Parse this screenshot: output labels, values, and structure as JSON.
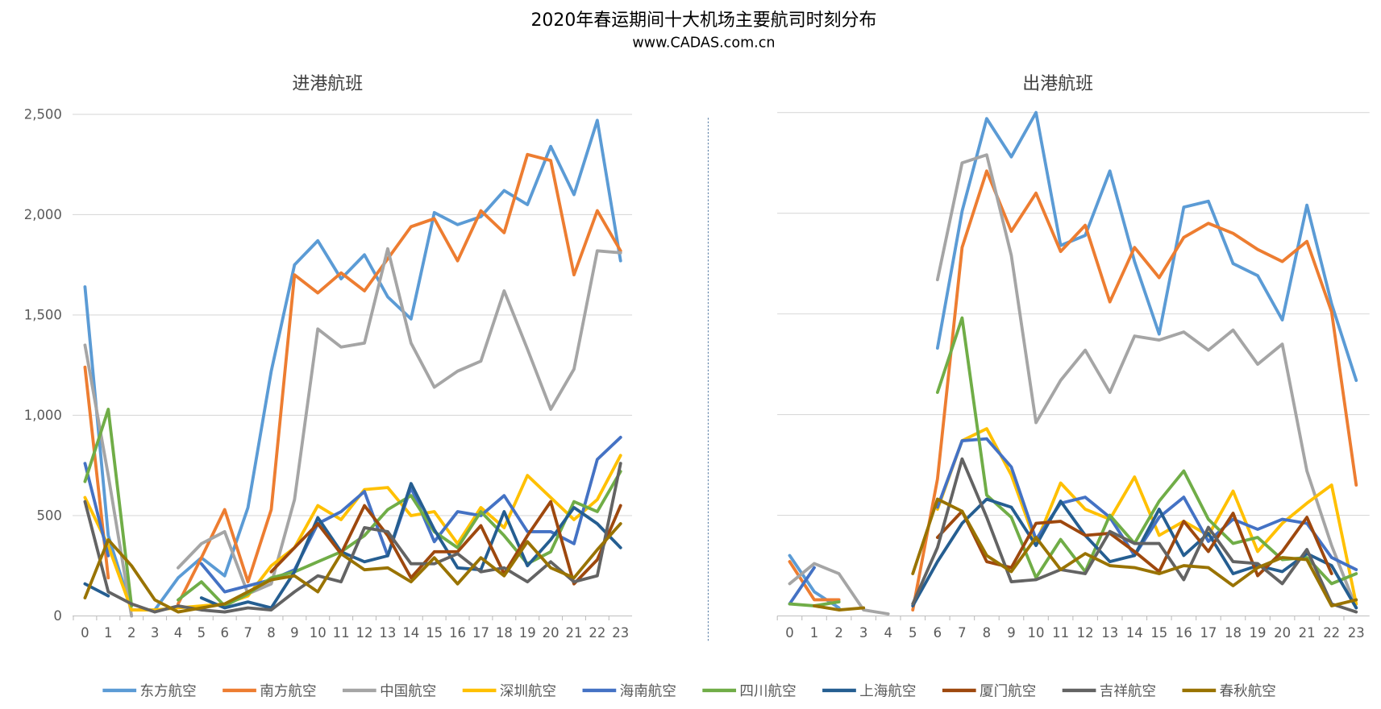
{
  "chart_data": {
    "title": "2020年春运期间十大机场主要航司时刻分布",
    "subtitle": "www.CADAS.com.cn",
    "legend_position": "bottom",
    "series_meta": [
      {
        "name": "东方航空",
        "color": "#5B9BD5"
      },
      {
        "name": "南方航空",
        "color": "#ED7D31"
      },
      {
        "name": "中国航空",
        "color": "#A5A5A5"
      },
      {
        "name": "深圳航空",
        "color": "#FFC000"
      },
      {
        "name": "海南航空",
        "color": "#4472C4"
      },
      {
        "name": "四川航空",
        "color": "#70AD47"
      },
      {
        "name": "上海航空",
        "color": "#255E91"
      },
      {
        "name": "厦门航空",
        "color": "#9E480E"
      },
      {
        "name": "吉祥航空",
        "color": "#636363"
      },
      {
        "name": "春秋航空",
        "color": "#997300"
      }
    ],
    "charts": [
      {
        "type": "line",
        "title": "进港航班",
        "x": [
          0,
          1,
          2,
          3,
          4,
          5,
          6,
          7,
          8,
          9,
          10,
          11,
          12,
          13,
          14,
          15,
          16,
          17,
          18,
          19,
          20,
          21,
          22,
          23
        ],
        "ylim": [
          0,
          2500
        ],
        "yticks": [
          0,
          500,
          1000,
          1500,
          2000,
          2500
        ],
        "ytick_labels": [
          "0",
          "500",
          "1,000",
          "1,500",
          "2,000",
          "2,500"
        ],
        "grid": true,
        "series": [
          [
            1640,
            400,
            30,
            30,
            190,
            290,
            200,
            540,
            1220,
            1750,
            1870,
            1680,
            1800,
            1590,
            1480,
            2010,
            1950,
            1990,
            2120,
            2050,
            2340,
            2100,
            2470,
            1770
          ],
          [
            1240,
            190,
            null,
            null,
            60,
            290,
            530,
            170,
            530,
            1700,
            1610,
            1710,
            1620,
            1780,
            1940,
            1980,
            1770,
            2020,
            1910,
            2300,
            2270,
            1700,
            2020,
            1820
          ],
          [
            1350,
            700,
            0,
            null,
            240,
            360,
            420,
            110,
            160,
            580,
            1430,
            1340,
            1360,
            1830,
            1360,
            1140,
            1220,
            1270,
            1620,
            1330,
            1030,
            1230,
            1820,
            1810
          ],
          [
            590,
            350,
            30,
            30,
            40,
            50,
            60,
            100,
            250,
            340,
            550,
            480,
            630,
            640,
            500,
            520,
            360,
            540,
            440,
            700,
            590,
            480,
            580,
            800
          ],
          [
            760,
            300,
            null,
            null,
            null,
            260,
            120,
            150,
            180,
            230,
            460,
            520,
            620,
            300,
            640,
            370,
            520,
            500,
            600,
            420,
            420,
            360,
            780,
            890
          ],
          [
            670,
            1030,
            50,
            null,
            80,
            170,
            50,
            110,
            190,
            220,
            270,
            320,
            400,
            530,
            600,
            420,
            340,
            520,
            400,
            260,
            320,
            570,
            520,
            720
          ],
          [
            160,
            100,
            null,
            null,
            null,
            90,
            40,
            70,
            40,
            220,
            490,
            320,
            270,
            300,
            660,
            430,
            240,
            230,
            520,
            250,
            380,
            540,
            460,
            340
          ],
          [
            null,
            null,
            null,
            null,
            null,
            null,
            null,
            null,
            220,
            340,
            460,
            310,
            550,
            400,
            190,
            320,
            320,
            450,
            210,
            400,
            570,
            160,
            280,
            550
          ],
          [
            570,
            120,
            60,
            20,
            50,
            30,
            20,
            40,
            30,
            120,
            200,
            170,
            440,
            420,
            260,
            260,
            310,
            220,
            240,
            170,
            270,
            170,
            200,
            760
          ],
          [
            90,
            380,
            250,
            80,
            20,
            40,
            60,
            120,
            180,
            200,
            120,
            310,
            230,
            240,
            170,
            290,
            160,
            290,
            200,
            370,
            240,
            190,
            330,
            460
          ]
        ]
      },
      {
        "type": "line",
        "title": "出港航班",
        "x": [
          0,
          1,
          2,
          3,
          4,
          5,
          6,
          7,
          8,
          9,
          10,
          11,
          12,
          13,
          14,
          15,
          16,
          17,
          18,
          19,
          20,
          21,
          22,
          23
        ],
        "ylim": [
          0,
          2500
        ],
        "grid": true,
        "series": [
          [
            300,
            120,
            40,
            null,
            null,
            null,
            1330,
            2010,
            2470,
            2280,
            2500,
            1840,
            1890,
            2210,
            1760,
            1400,
            2030,
            2060,
            1750,
            1690,
            1470,
            2040,
            1550,
            1170
          ],
          [
            270,
            80,
            80,
            null,
            null,
            30,
            680,
            1830,
            2210,
            1910,
            2100,
            1810,
            1940,
            1560,
            1830,
            1680,
            1880,
            1950,
            1900,
            1820,
            1760,
            1860,
            1510,
            650
          ],
          [
            160,
            260,
            210,
            30,
            10,
            null,
            1670,
            2250,
            2290,
            1790,
            960,
            1170,
            1320,
            1110,
            1390,
            1370,
            1410,
            1320,
            1420,
            1250,
            1350,
            720,
            350,
            40
          ],
          [
            null,
            null,
            null,
            null,
            null,
            null,
            530,
            870,
            930,
            700,
            360,
            660,
            530,
            480,
            690,
            400,
            470,
            400,
            620,
            320,
            460,
            560,
            650,
            60
          ],
          [
            60,
            240,
            null,
            null,
            null,
            null,
            540,
            870,
            880,
            740,
            380,
            560,
            590,
            490,
            300,
            490,
            590,
            370,
            480,
            430,
            480,
            460,
            290,
            230
          ],
          [
            60,
            50,
            70,
            null,
            null,
            null,
            1110,
            1480,
            600,
            490,
            190,
            380,
            220,
            500,
            360,
            570,
            720,
            480,
            360,
            390,
            280,
            290,
            160,
            210
          ],
          [
            null,
            null,
            null,
            null,
            null,
            50,
            270,
            460,
            580,
            540,
            350,
            570,
            400,
            270,
            300,
            530,
            300,
            410,
            210,
            250,
            220,
            310,
            250,
            40
          ],
          [
            null,
            null,
            null,
            null,
            null,
            null,
            390,
            520,
            270,
            240,
            460,
            470,
            400,
            410,
            320,
            220,
            470,
            320,
            510,
            200,
            320,
            490,
            210,
            null
          ],
          [
            null,
            null,
            null,
            null,
            null,
            60,
            340,
            780,
            490,
            170,
            180,
            230,
            210,
            420,
            360,
            360,
            180,
            440,
            270,
            260,
            160,
            330,
            60,
            20
          ],
          [
            null,
            50,
            30,
            40,
            null,
            210,
            580,
            520,
            300,
            220,
            390,
            230,
            310,
            250,
            240,
            210,
            250,
            240,
            150,
            240,
            290,
            280,
            50,
            80
          ]
        ]
      }
    ]
  }
}
